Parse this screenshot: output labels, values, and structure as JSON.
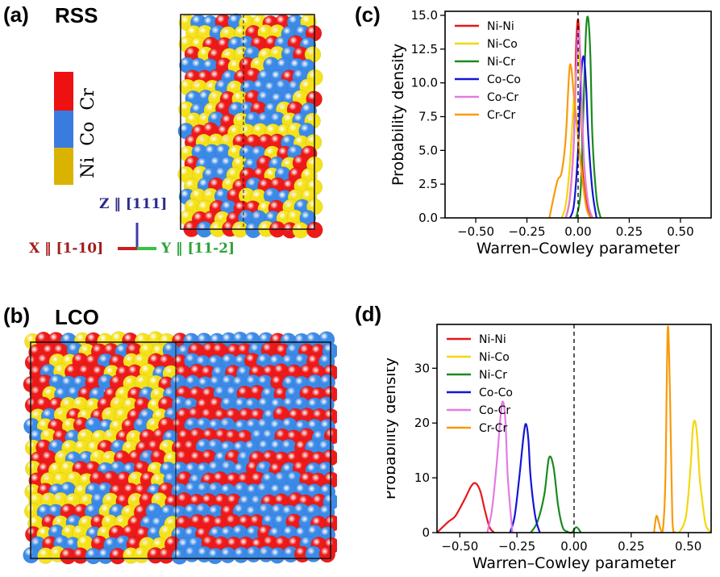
{
  "panels": {
    "a": {
      "label": "(a)",
      "title": "RSS"
    },
    "b": {
      "label": "(b)",
      "title": "LCO"
    },
    "c": {
      "label": "(c)"
    },
    "d": {
      "label": "(d)"
    }
  },
  "colorbar": {
    "labels": [
      "Ni",
      "Co",
      "Cr"
    ],
    "colors": {
      "Ni": "#d9b300",
      "Co": "#3a7be0",
      "Cr": "#ee1111"
    }
  },
  "axes_triad": {
    "z": "Z ‖ [111]",
    "x": "X ‖ [1-10]",
    "y": "Y ‖ [11-2]",
    "colors": {
      "z": "#2b2b8a",
      "x": "#a11d1d",
      "y": "#2ea33a"
    }
  },
  "atom_colors": {
    "Ni": "#f5e21a",
    "Co": "#3c8ae8",
    "Cr": "#ee1a1a"
  },
  "chart_data": [
    {
      "id": "c",
      "type": "line",
      "xlabel": "Warren–Cowley parameter",
      "ylabel": "Probability density",
      "xlim": [
        -0.65,
        0.65
      ],
      "ylim": [
        0,
        15.3
      ],
      "xticks": [
        -0.5,
        -0.25,
        0.0,
        0.25,
        0.5
      ],
      "xtick_labels": [
        "−0.50",
        "−0.25",
        "0.00",
        "0.25",
        "0.50"
      ],
      "yticks": [
        0,
        2.5,
        5,
        7.5,
        10,
        12.5,
        15
      ],
      "ytick_labels": [
        "0.0",
        "2.5",
        "5.0",
        "7.5",
        "10.0",
        "12.5",
        "15.0"
      ],
      "vline_x": 0.0,
      "legend_position": "top-left",
      "series": [
        {
          "name": "Ni-Ni",
          "color": "#e8161b",
          "x": [
            -0.06,
            -0.04,
            -0.02,
            -0.01,
            0.0,
            0.01,
            0.02,
            0.03,
            0.05,
            0.07
          ],
          "y": [
            0,
            1.5,
            6,
            12.5,
            14.7,
            12,
            6,
            2.5,
            0.5,
            0
          ]
        },
        {
          "name": "Ni-Co",
          "color": "#f2d80b",
          "x": [
            -0.08,
            -0.06,
            -0.04,
            -0.02,
            0.0,
            0.01,
            0.02,
            0.03,
            0.05,
            0.07
          ],
          "y": [
            0,
            1,
            4,
            9,
            12.2,
            10.5,
            7,
            3.5,
            1,
            0
          ]
        },
        {
          "name": "Ni-Cr",
          "color": "#1a8a1e",
          "x": [
            -0.01,
            0.01,
            0.02,
            0.03,
            0.04,
            0.05,
            0.06,
            0.07,
            0.09,
            0.11
          ],
          "y": [
            0,
            1.5,
            5,
            10,
            14.2,
            14.7,
            12,
            6,
            1.5,
            0
          ]
        },
        {
          "name": "Co-Co",
          "color": "#1515d6",
          "x": [
            -0.04,
            -0.02,
            0.0,
            0.01,
            0.02,
            0.03,
            0.04,
            0.05,
            0.07,
            0.09
          ],
          "y": [
            0,
            1,
            5,
            9,
            11.5,
            11.8,
            9.5,
            6,
            2,
            0
          ]
        },
        {
          "name": "Co-Cr",
          "color": "#e27be2",
          "x": [
            -0.06,
            -0.04,
            -0.02,
            -0.01,
            0.0,
            0.01,
            0.02,
            0.03,
            0.05,
            0.07
          ],
          "y": [
            0,
            1.5,
            6,
            10.5,
            13.8,
            12.5,
            8,
            4,
            1,
            0
          ]
        },
        {
          "name": "Cr-Cr",
          "color": "#f99a0a",
          "x": [
            -0.14,
            -0.12,
            -0.1,
            -0.08,
            -0.06,
            -0.04,
            -0.02,
            0.0,
            0.02,
            0.04,
            0.06
          ],
          "y": [
            0,
            1.5,
            2.8,
            3.4,
            6,
            11.3,
            9,
            6,
            3,
            0.8,
            0
          ]
        }
      ]
    },
    {
      "id": "d",
      "type": "line",
      "xlabel": "Warren–Cowley parameter",
      "ylabel": "Probability density",
      "xlim": [
        -0.6,
        0.6
      ],
      "ylim": [
        0,
        38
      ],
      "xticks": [
        -0.5,
        -0.25,
        0.0,
        0.25,
        0.5
      ],
      "xtick_labels": [
        "−0.50",
        "−0.25",
        "0.00",
        "0.25",
        "0.50"
      ],
      "yticks": [
        0,
        10,
        20,
        30
      ],
      "ytick_labels": [
        "0",
        "10",
        "20",
        "30"
      ],
      "vline_x": 0.0,
      "legend_position": "top-left",
      "series": [
        {
          "name": "Ni-Ni",
          "color": "#e8161b",
          "x": [
            -0.6,
            -0.55,
            -0.52,
            -0.48,
            -0.45,
            -0.43,
            -0.41,
            -0.39,
            -0.37,
            -0.35
          ],
          "y": [
            0,
            2,
            3,
            6,
            8.5,
            9,
            7.5,
            4,
            1,
            0
          ]
        },
        {
          "name": "Ni-Co",
          "color": "#f2d80b",
          "x": [
            0.46,
            0.49,
            0.51,
            0.52,
            0.53,
            0.54,
            0.55,
            0.57,
            0.58,
            0.6
          ],
          "y": [
            0,
            3,
            12,
            19,
            20.3,
            17,
            10,
            3,
            1,
            0
          ]
        },
        {
          "name": "Ni-Cr",
          "color": "#1a8a1e",
          "x": [
            -0.19,
            -0.16,
            -0.13,
            -0.11,
            -0.09,
            -0.07,
            -0.05,
            -0.03,
            -0.01,
            0.01,
            0.03
          ],
          "y": [
            0,
            2,
            7,
            13.6,
            12,
            5,
            1,
            0.2,
            0,
            1,
            0
          ]
        },
        {
          "name": "Co-Co",
          "color": "#1515d6",
          "x": [
            -0.28,
            -0.26,
            -0.24,
            -0.22,
            -0.21,
            -0.2,
            -0.19,
            -0.17,
            -0.15
          ],
          "y": [
            0,
            3,
            10,
            18,
            19.8,
            17,
            10,
            3,
            0
          ]
        },
        {
          "name": "Co-Cr",
          "color": "#e27be2",
          "x": [
            -0.38,
            -0.36,
            -0.34,
            -0.32,
            -0.31,
            -0.3,
            -0.29,
            -0.27
          ],
          "y": [
            0,
            4,
            12,
            22,
            23.8,
            20,
            10,
            0
          ]
        },
        {
          "name": "Cr-Cr",
          "color": "#f99a0a",
          "x": [
            0.35,
            0.36,
            0.37,
            0.38,
            0.39,
            0.4,
            0.41,
            0.42,
            0.43,
            0.44
          ],
          "y": [
            0,
            3,
            2,
            0.5,
            1,
            10,
            37.2,
            25,
            3,
            0
          ]
        }
      ]
    }
  ]
}
